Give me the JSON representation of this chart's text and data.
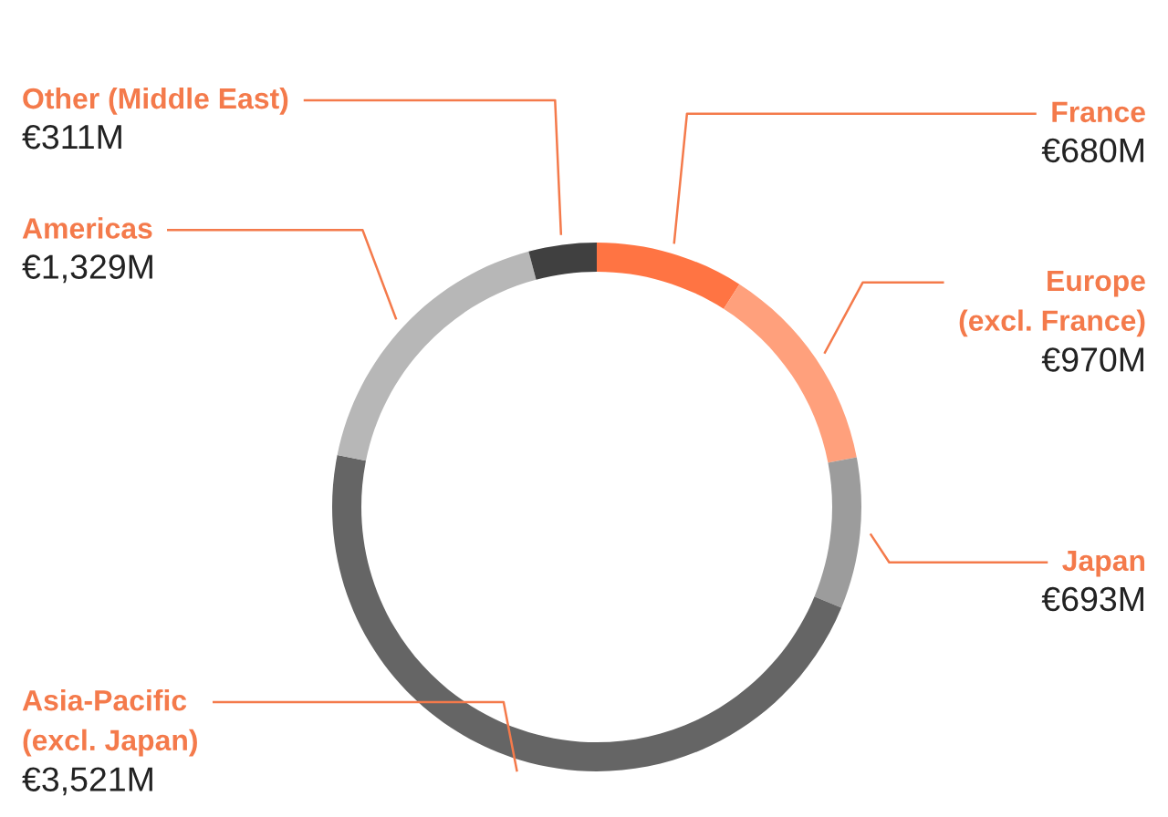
{
  "chart_data": {
    "type": "donut",
    "categories": [
      "France",
      "Europe\n(excl. France)",
      "Japan",
      "Asia-Pacific\n(excl. Japan)",
      "Americas",
      "Other (Middle East)"
    ],
    "values": [
      680,
      970,
      693,
      3521,
      1329,
      311
    ],
    "value_labels": [
      "€680M",
      "€970M",
      "€693M",
      "€3,521M",
      "€1,329M",
      "€311M"
    ],
    "colors": [
      "#ff7443",
      "#ffa07c",
      "#9c9c9c",
      "#656565",
      "#b7b7b7",
      "#404040"
    ],
    "legend": false
  }
}
